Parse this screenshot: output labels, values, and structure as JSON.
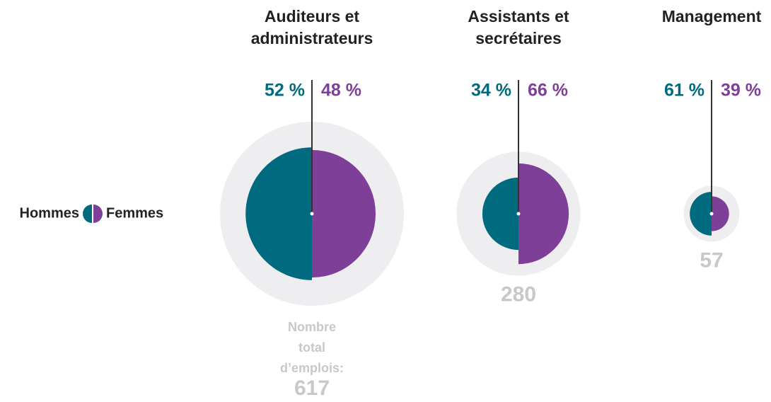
{
  "chart_data": {
    "type": "split",
    "categories": [
      "Auditeurs et administrateurs",
      "Assistants et secrétaires",
      "Management"
    ],
    "totals": [
      617,
      280,
      57
    ],
    "total_label": "Nombre total d’emplois:",
    "total_color": "#eeeef0",
    "series": [
      {
        "name": "Hommes",
        "color": "#006a7f",
        "values": [
          52,
          34,
          61
        ],
        "value_labels": [
          "52 %",
          "34 %",
          "61 %"
        ]
      },
      {
        "name": "Femmes",
        "color": "#7e3f98",
        "values": [
          48,
          66,
          39
        ],
        "value_labels": [
          "48 %",
          "66 %",
          "39 %"
        ]
      }
    ]
  }
}
